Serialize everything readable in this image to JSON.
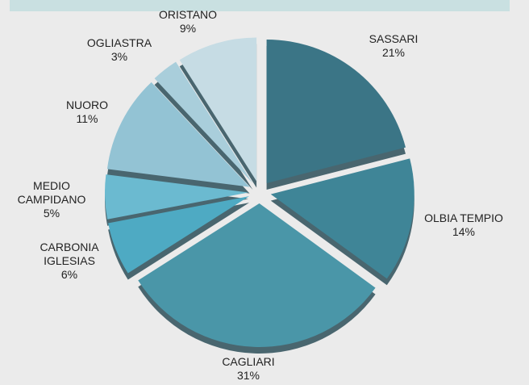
{
  "chart_data": {
    "type": "pie",
    "categories": [
      "SASSARI",
      "OLBIA TEMPIO",
      "CAGLIARI",
      "CARBONIA IGLESIAS",
      "MEDIO CAMPIDANO",
      "NUORO",
      "OGLIASTRA",
      "ORISTANO"
    ],
    "values": [
      21,
      14,
      31,
      6,
      5,
      11,
      3,
      9
    ],
    "value_labels": [
      "21%",
      "14%",
      "31%",
      "6%",
      "5%",
      "11%",
      "3%",
      "9%"
    ],
    "colors": [
      "#3b7586",
      "#3f8597",
      "#4a96a8",
      "#4eaac3",
      "#6bbad0",
      "#93c3d4",
      "#a9cedb",
      "#c6dce4"
    ]
  }
}
